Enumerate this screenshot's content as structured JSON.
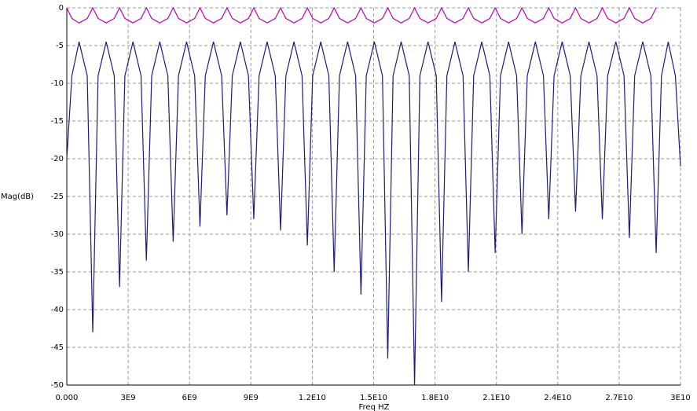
{
  "chart_data": {
    "type": "line",
    "y_label": "Mag(dB)",
    "x_label": "Freq HZ",
    "xlim": [
      0,
      30000000000.0
    ],
    "ylim": [
      -50,
      0
    ],
    "grid": true,
    "xticks": [
      {
        "value": 0,
        "label": "0.000"
      },
      {
        "value": 3000000000.0,
        "label": "3E9"
      },
      {
        "value": 6000000000.0,
        "label": "6E9"
      },
      {
        "value": 9000000000.0,
        "label": "9E9"
      },
      {
        "value": 12000000000.0,
        "label": "1.2E10"
      },
      {
        "value": 15000000000.0,
        "label": "1.5E10"
      },
      {
        "value": 18000000000.0,
        "label": "1.8E10"
      },
      {
        "value": 21000000000.0,
        "label": "2.1E10"
      },
      {
        "value": 24000000000.0,
        "label": "2.4E10"
      },
      {
        "value": 27000000000.0,
        "label": "2.7E10"
      },
      {
        "value": 30000000000.0,
        "label": "3E10"
      }
    ],
    "yticks": [
      0,
      -5,
      -10,
      -15,
      -20,
      -25,
      -30,
      -35,
      -40,
      -45,
      -50
    ],
    "x": [
      0,
      250000000.0,
      600000000.0,
      1000000000.0,
      1270000000.0,
      1530000000.0,
      1925000000.0,
      2320000000.0,
      2580000000.0,
      2840000000.0,
      3235000000.0,
      3630000000.0,
      3890000000.0,
      4150000000.0,
      4545000000.0,
      4940000000.0,
      5200000000.0,
      5460000000.0,
      5855000000.0,
      6250000000.0,
      6510000000.0,
      6770000000.0,
      7170000000.0,
      7570000000.0,
      7830000000.0,
      8090000000.0,
      8485000000.0,
      8880000000.0,
      9140000000.0,
      9400000000.0,
      9795000000.0,
      10190000000.0,
      10450000000.0,
      10710000000.0,
      11105000000.0,
      11500000000.0,
      11760000000.0,
      12020000000.0,
      12415000000.0,
      12810000000.0,
      13070000000.0,
      13330000000.0,
      13725000000.0,
      14120000000.0,
      14380000000.0,
      14640000000.0,
      15035000000.0,
      15430000000.0,
      15690000000.0,
      15950000000.0,
      16345000000.0,
      16740000000.0,
      17000000000.0,
      17260000000.0,
      17660000000.0,
      18060000000.0,
      18320000000.0,
      18580000000.0,
      18975000000.0,
      19370000000.0,
      19630000000.0,
      19890000000.0,
      20285000000.0,
      20680000000.0,
      20940000000.0,
      21200000000.0,
      21595000000.0,
      21990000000.0,
      22250000000.0,
      22510000000.0,
      22905000000.0,
      23300000000.0,
      23560000000.0,
      23820000000.0,
      24215000000.0,
      24610000000.0,
      24870000000.0,
      25130000000.0,
      25525000000.0,
      25920000000.0,
      26180000000.0,
      26440000000.0,
      26840000000.0,
      27240000000.0,
      27500000000.0,
      27760000000.0,
      28155000000.0,
      28550000000.0,
      28810000000.0,
      29070000000.0,
      29400000000.0,
      29750000000.0,
      30000000000.0
    ],
    "series": [
      {
        "color": "#1c1c7c",
        "values": [
          -20,
          -9,
          -4.5,
          -9,
          -43,
          -9,
          -4.5,
          -9,
          -37,
          -9,
          -4.5,
          -9,
          -33.5,
          -9,
          -4.5,
          -9,
          -31,
          -9,
          -4.5,
          -9,
          -29,
          -9,
          -4.5,
          -9,
          -27.5,
          -9,
          -4.5,
          -9,
          -28,
          -9,
          -4.5,
          -9,
          -29.5,
          -9,
          -4.5,
          -9,
          -31.5,
          -9,
          -4.5,
          -9,
          -35,
          -9,
          -4.5,
          -9,
          -38,
          -9,
          -4.5,
          -9,
          -46.5,
          -9,
          -4.5,
          -9,
          -50,
          -9,
          -4.5,
          -9,
          -39,
          -9,
          -4.5,
          -9,
          -35,
          -9,
          -4.5,
          -9,
          -32.5,
          -9,
          -4.5,
          -9,
          -30,
          -9,
          -4.5,
          -9,
          -28,
          -9,
          -4.5,
          -9,
          -27,
          -9,
          -4.5,
          -9,
          -28,
          -9,
          -4.5,
          -9,
          -30.5,
          -9,
          -4.5,
          -9,
          -32.5,
          -9,
          -4.5,
          -9,
          -21
        ]
      },
      {
        "color": "#c000c0",
        "values": [
          0,
          -1.4,
          -2,
          -1.4,
          0,
          -1.4,
          -2,
          -1.4,
          0,
          -1.4,
          -2,
          -1.4,
          0,
          -1.4,
          -2,
          -1.4,
          0,
          -1.4,
          -2,
          -1.4,
          0,
          -1.4,
          -2,
          -1.4,
          0,
          -1.4,
          -2,
          -1.4,
          0,
          -1.4,
          -2,
          -1.4,
          0,
          -1.4,
          -2,
          -1.4,
          0,
          -1.4,
          -2,
          -1.4,
          0,
          -1.4,
          -2,
          -1.4,
          0,
          -1.4,
          -2,
          -1.4,
          0,
          -1.4,
          -2,
          -1.4,
          0,
          -1.4,
          -2,
          -1.4,
          0,
          -1.4,
          -2,
          -1.4,
          0,
          -1.4,
          -2,
          -1.4,
          0,
          -1.4,
          -2,
          -1.4,
          0,
          -1.4,
          -2,
          -1.4,
          0,
          -1.4,
          -2,
          -1.4,
          0,
          -1.4,
          -2,
          -1.4,
          0,
          -1.4,
          -2,
          -1.4,
          0,
          -1.4,
          -2,
          -1.4,
          0,
          null,
          null,
          null,
          null
        ]
      }
    ]
  }
}
